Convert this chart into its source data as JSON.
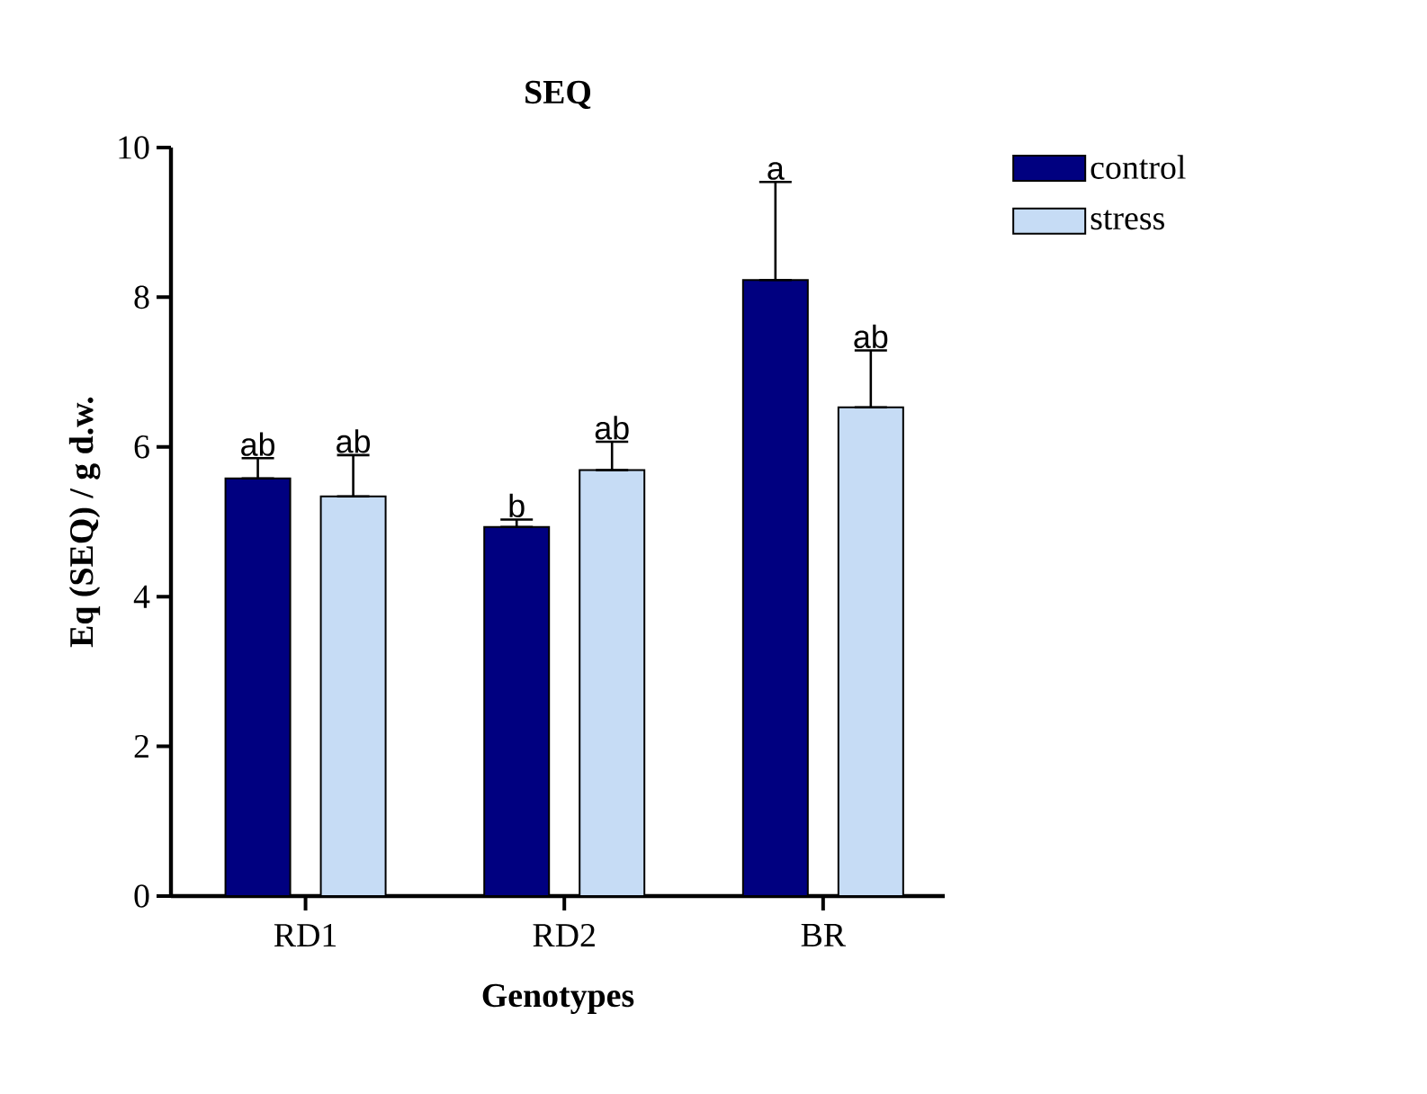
{
  "chart_data": {
    "type": "bar",
    "title": "SEQ",
    "xlabel": "Genotypes",
    "ylabel": "Eq (SEQ) / g d.w.",
    "categories": [
      "RD1",
      "RD2",
      "BR"
    ],
    "series": [
      {
        "name": "control",
        "color": "#000080",
        "values": [
          5.58,
          4.93,
          8.23
        ],
        "errors": [
          [
            5.58,
            5.85
          ],
          [
            4.93,
            5.03
          ],
          [
            8.23,
            9.54
          ]
        ],
        "value_labels": [
          "ab",
          "b",
          "a"
        ]
      },
      {
        "name": "stress",
        "color": "#c6dcf5",
        "values": [
          5.34,
          5.69,
          6.53
        ],
        "errors": [
          [
            5.34,
            5.89
          ],
          [
            5.69,
            6.07
          ],
          [
            6.53,
            7.29
          ]
        ],
        "value_labels": [
          "ab",
          "ab",
          "ab"
        ]
      }
    ],
    "ylim": [
      0,
      10
    ],
    "yticks": [
      0,
      2,
      4,
      6,
      8,
      10
    ],
    "grid": false,
    "legend": "top right"
  }
}
